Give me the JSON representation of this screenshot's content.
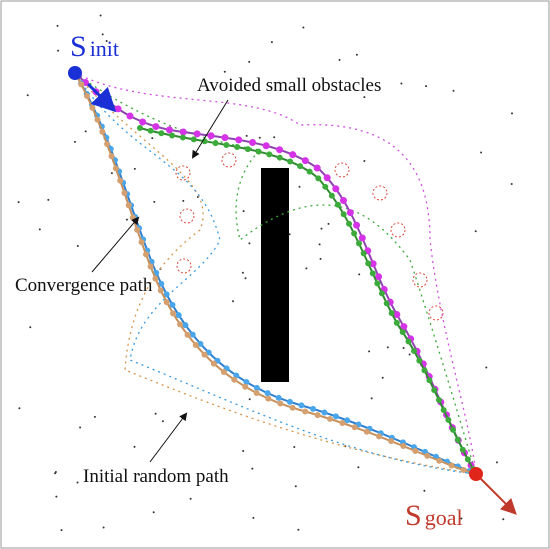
{
  "start": {
    "symbol": "S",
    "subscript": "init"
  },
  "goal": {
    "symbol": "S",
    "subscript": "goal"
  },
  "annotations": [
    "Avoided small obstacles",
    "Convergence path",
    "Initial random path"
  ]
}
